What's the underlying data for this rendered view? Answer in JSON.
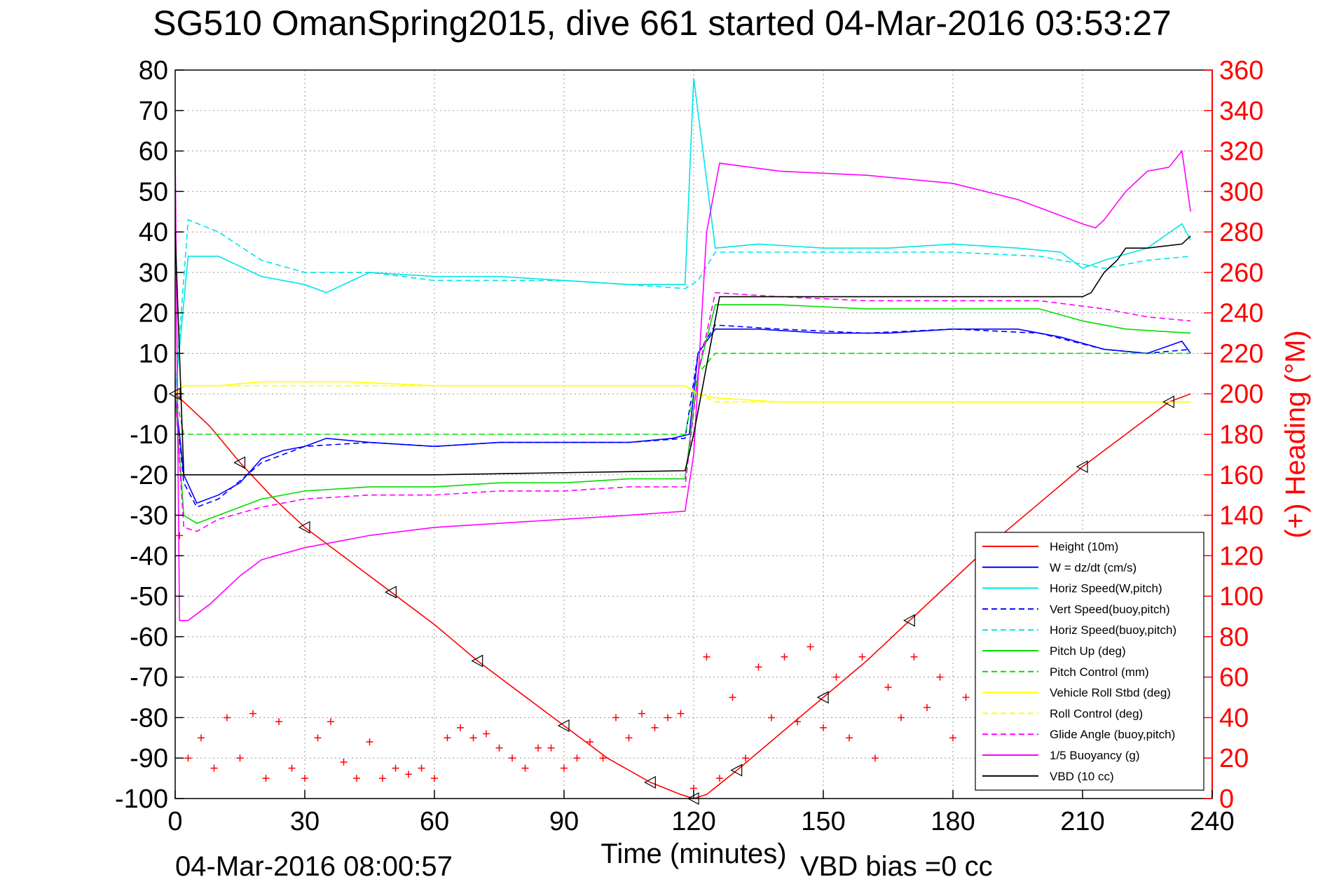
{
  "chart_data": {
    "type": "line",
    "title": "SG510 OmanSpring2015, dive 661 started 04-Mar-2016 03:53:27",
    "xlabel": "Time (minutes)",
    "ylabel": "",
    "y2label": "(+) Heading (°M)",
    "xlim": [
      0,
      240
    ],
    "ylim": [
      -100,
      80
    ],
    "y2lim": [
      0,
      360
    ],
    "xticks": [
      0,
      30,
      60,
      90,
      120,
      150,
      180,
      210,
      240
    ],
    "yticks": [
      -100,
      -90,
      -80,
      -70,
      -60,
      -50,
      -40,
      -30,
      -20,
      -10,
      0,
      10,
      20,
      30,
      40,
      50,
      60,
      70,
      80
    ],
    "y2ticks": [
      0,
      20,
      40,
      60,
      80,
      100,
      120,
      140,
      160,
      180,
      200,
      220,
      240,
      260,
      280,
      300,
      320,
      340,
      360
    ],
    "grid": true,
    "legend_position": "lower-right",
    "footer_left": "04-Mar-2016 08:00:57",
    "footer_right": "VBD bias =0 cc",
    "colors": {
      "height": "#ff0000",
      "w": "#0000ff",
      "horiz": "#00e5e5",
      "pitch": "#00dd00",
      "roll": "#ffff00",
      "glide": "#ff00ff",
      "buoy": "#ff00ff",
      "vbd": "#000000",
      "heading": "#ff0000"
    },
    "series": [
      {
        "name": "Height (10m)",
        "style": "solid",
        "color": "#ff0000",
        "x": [
          0,
          8,
          15,
          22,
          30,
          40,
          50,
          60,
          70,
          80,
          90,
          100,
          110,
          117,
          120,
          123,
          130,
          140,
          150,
          160,
          170,
          180,
          190,
          200,
          210,
          220,
          230,
          235
        ],
        "y": [
          0,
          -8,
          -17,
          -25,
          -33,
          -41,
          -49,
          -57,
          -66,
          -74,
          -82,
          -90,
          -96,
          -99,
          -100,
          -99,
          -93,
          -84,
          -75,
          -66,
          -56,
          -46,
          -36,
          -27,
          -18,
          -10,
          -2,
          0
        ]
      },
      {
        "name": "W = dz/dt (cm/s)",
        "style": "solid",
        "color": "#0000ff",
        "x": [
          0,
          2,
          5,
          10,
          15,
          20,
          25,
          30,
          35,
          45,
          60,
          75,
          90,
          105,
          115,
          119,
          121,
          125,
          135,
          150,
          165,
          180,
          195,
          205,
          215,
          225,
          233,
          235
        ],
        "y": [
          0,
          -20,
          -27,
          -25,
          -22,
          -16,
          -14,
          -13,
          -11,
          -12,
          -13,
          -12,
          -12,
          -12,
          -11,
          -10,
          10,
          16,
          16,
          15,
          15,
          16,
          16,
          14,
          11,
          10,
          13,
          10
        ]
      },
      {
        "name": "Horiz Speed(W,pitch)",
        "style": "solid",
        "color": "#00e5e5",
        "x": [
          0,
          3,
          10,
          20,
          30,
          35,
          45,
          60,
          75,
          90,
          105,
          118,
          120,
          125,
          135,
          150,
          165,
          180,
          195,
          205,
          210,
          215,
          225,
          233,
          235
        ],
        "y": [
          0,
          34,
          34,
          29,
          27,
          25,
          30,
          29,
          29,
          28,
          27,
          27,
          78,
          36,
          37,
          36,
          36,
          37,
          36,
          35,
          31,
          33,
          36,
          42,
          38
        ]
      },
      {
        "name": "Vert Speed(buoy,pitch)",
        "style": "dashed",
        "color": "#0000ff",
        "x": [
          0,
          2,
          5,
          10,
          20,
          30,
          45,
          60,
          75,
          90,
          105,
          118,
          121,
          125,
          140,
          160,
          180,
          200,
          215,
          225,
          235
        ],
        "y": [
          0,
          -22,
          -28,
          -26,
          -17,
          -13,
          -12,
          -13,
          -12,
          -12,
          -12,
          -11,
          10,
          17,
          16,
          15,
          16,
          15,
          11,
          10,
          11
        ]
      },
      {
        "name": "Horiz Speed(buoy,pitch)",
        "style": "dashed",
        "color": "#00e5e5",
        "x": [
          0,
          3,
          10,
          20,
          30,
          45,
          60,
          75,
          90,
          105,
          118,
          121,
          125,
          140,
          160,
          180,
          200,
          215,
          225,
          235
        ],
        "y": [
          0,
          43,
          40,
          33,
          30,
          30,
          28,
          28,
          28,
          27,
          26,
          28,
          35,
          35,
          35,
          35,
          34,
          31,
          33,
          34
        ]
      },
      {
        "name": "Pitch Up (deg)",
        "style": "solid",
        "color": "#00dd00",
        "x": [
          0,
          2,
          5,
          10,
          20,
          30,
          45,
          60,
          75,
          90,
          105,
          118,
          121,
          125,
          140,
          160,
          180,
          200,
          210,
          220,
          235
        ],
        "y": [
          0,
          -30,
          -32,
          -30,
          -26,
          -24,
          -23,
          -23,
          -22,
          -22,
          -21,
          -21,
          5,
          22,
          22,
          21,
          21,
          21,
          18,
          16,
          15
        ]
      },
      {
        "name": "Pitch Control (mm)",
        "style": "dashed",
        "color": "#00dd00",
        "x": [
          0,
          2,
          10,
          20,
          60,
          118,
          121,
          125,
          235
        ],
        "y": [
          0,
          -10,
          -10,
          -10,
          -10,
          -10,
          5,
          10,
          10
        ]
      },
      {
        "name": "Vehicle Roll Stbd (deg)",
        "style": "solid",
        "color": "#ffff00",
        "x": [
          0,
          2,
          10,
          20,
          40,
          60,
          80,
          100,
          118,
          121,
          125,
          140,
          160,
          180,
          200,
          220,
          235
        ],
        "y": [
          0,
          2,
          2,
          3,
          3,
          2,
          2,
          2,
          2,
          0,
          -1,
          -2,
          -2,
          -2,
          -2,
          -2,
          -2
        ]
      },
      {
        "name": "Roll Control (deg)",
        "style": "dashed",
        "color": "#ffff00",
        "x": [
          0,
          2,
          10,
          60,
          118,
          121,
          125,
          180,
          235
        ],
        "y": [
          0,
          2,
          2,
          2,
          2,
          0,
          -2,
          -2,
          -2
        ]
      },
      {
        "name": "Glide Angle (buoy,pitch)",
        "style": "dashed",
        "color": "#ff00ff",
        "x": [
          0,
          2,
          5,
          10,
          20,
          30,
          45,
          60,
          75,
          90,
          105,
          118,
          121,
          125,
          140,
          160,
          180,
          200,
          215,
          225,
          235
        ],
        "y": [
          0,
          -33,
          -34,
          -31,
          -28,
          -26,
          -25,
          -25,
          -24,
          -24,
          -23,
          -23,
          5,
          25,
          24,
          23,
          23,
          23,
          21,
          19,
          18
        ]
      },
      {
        "name": "1/5 Buoyancy (g)",
        "style": "solid",
        "color": "#ff00ff",
        "x": [
          0,
          1,
          3,
          8,
          15,
          20,
          30,
          45,
          60,
          75,
          90,
          105,
          118,
          120,
          123,
          126,
          140,
          160,
          180,
          195,
          205,
          210,
          213,
          215,
          220,
          225,
          230,
          233,
          235
        ],
        "y": [
          60,
          -56,
          -56,
          -52,
          -45,
          -41,
          -38,
          -35,
          -33,
          -32,
          -31,
          -30,
          -29,
          -15,
          40,
          57,
          55,
          54,
          52,
          48,
          44,
          42,
          41,
          43,
          50,
          55,
          56,
          60,
          45
        ]
      },
      {
        "name": "VBD (10 cc)",
        "style": "solid",
        "color": "#000000",
        "x": [
          0,
          2,
          10,
          60,
          118,
          120,
          126,
          150,
          180,
          200,
          210,
          212,
          215,
          218,
          220,
          225,
          233,
          235
        ],
        "y": [
          40,
          -20,
          -20,
          -20,
          -19,
          -10,
          24,
          24,
          24,
          24,
          24,
          25,
          30,
          33,
          36,
          36,
          37,
          39
        ]
      }
    ],
    "heading": {
      "name": "(+) Heading (°M)",
      "x": [
        1,
        3,
        6,
        9,
        12,
        15,
        18,
        21,
        24,
        27,
        30,
        33,
        36,
        39,
        42,
        45,
        48,
        51,
        54,
        57,
        60,
        63,
        66,
        69,
        72,
        75,
        78,
        81,
        84,
        87,
        90,
        93,
        96,
        99,
        102,
        105,
        108,
        111,
        114,
        117,
        120,
        123,
        126,
        129,
        132,
        135,
        138,
        141,
        144,
        147,
        150,
        153,
        156,
        159,
        162,
        165,
        168,
        171,
        174,
        177,
        180,
        183,
        186,
        189,
        192,
        195,
        198,
        201,
        204,
        207,
        210,
        213,
        216,
        219,
        222,
        225,
        228,
        231,
        234
      ],
      "y": [
        130,
        20,
        30,
        15,
        40,
        20,
        42,
        10,
        38,
        15,
        10,
        30,
        38,
        18,
        10,
        28,
        10,
        15,
        12,
        15,
        10,
        30,
        35,
        30,
        32,
        25,
        20,
        15,
        25,
        25,
        15,
        20,
        28,
        20,
        40,
        30,
        42,
        35,
        40,
        42,
        5,
        70,
        10,
        50,
        20,
        65,
        40,
        70,
        38,
        75,
        35,
        60,
        30,
        70,
        20,
        55,
        40,
        70,
        45,
        60,
        30,
        50,
        40,
        70,
        55,
        20,
        60,
        40,
        70,
        50,
        40,
        30,
        60,
        40,
        80,
        60,
        50,
        70,
        80
      ]
    }
  },
  "legend": [
    {
      "label": "Height (10m)",
      "color": "#ff0000",
      "dash": false
    },
    {
      "label": "W = dz/dt (cm/s)",
      "color": "#0000ff",
      "dash": false
    },
    {
      "label": "Horiz Speed(W,pitch)",
      "color": "#00e5e5",
      "dash": false
    },
    {
      "label": "Vert Speed(buoy,pitch)",
      "color": "#0000ff",
      "dash": true
    },
    {
      "label": "Horiz Speed(buoy,pitch)",
      "color": "#00e5e5",
      "dash": true
    },
    {
      "label": "Pitch Up (deg)",
      "color": "#00dd00",
      "dash": false
    },
    {
      "label": "Pitch Control (mm)",
      "color": "#00dd00",
      "dash": true
    },
    {
      "label": "Vehicle Roll Stbd (deg)",
      "color": "#ffff00",
      "dash": false
    },
    {
      "label": "Roll Control (deg)",
      "color": "#ffff00",
      "dash": true
    },
    {
      "label": "Glide Angle (buoy,pitch)",
      "color": "#ff00ff",
      "dash": true
    },
    {
      "label": "1/5 Buoyancy (g)",
      "color": "#ff00ff",
      "dash": false
    },
    {
      "label": "VBD (10 cc)",
      "color": "#000000",
      "dash": false
    }
  ]
}
